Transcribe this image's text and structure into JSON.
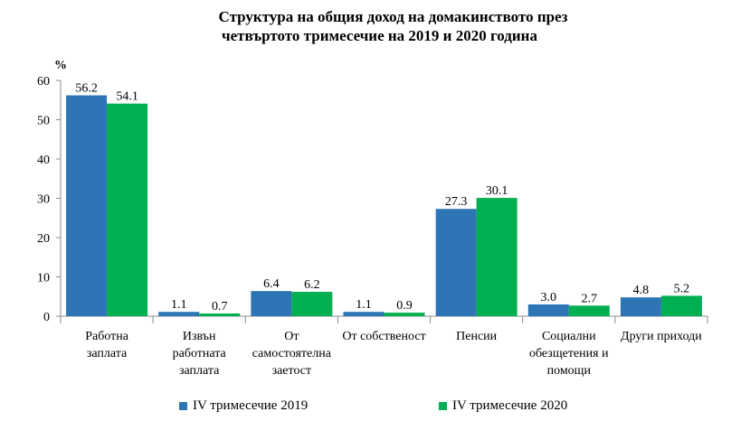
{
  "chart_data": {
    "type": "bar",
    "title": "Структура на общия доход на домакинството през",
    "subtitle": "четвъртото тримесечие на 2019 и 2020 година",
    "ylabel": "%",
    "ylim": [
      0,
      60
    ],
    "yticks": [
      0,
      10,
      20,
      30,
      40,
      50,
      60
    ],
    "grid": false,
    "legend_position": "bottom",
    "categories": [
      [
        "Работна",
        "заплата"
      ],
      [
        "Извън",
        "работната",
        "заплата"
      ],
      [
        "От",
        "самостоятелна",
        "заетост"
      ],
      [
        "От собственост"
      ],
      [
        "Пенсии"
      ],
      [
        "Социални",
        "обезщетения и",
        "помощи"
      ],
      [
        "Други приходи"
      ]
    ],
    "series": [
      {
        "name": "IV  тримесечие 2019",
        "color": "#2e75b6",
        "values": [
          56.2,
          1.1,
          6.4,
          1.1,
          27.3,
          3.0,
          4.8
        ],
        "labels": [
          "56.2",
          "1.1",
          "6.4",
          "1.1",
          "27.3",
          "3.0",
          "4.8"
        ]
      },
      {
        "name": "IV  тримесечие 2020",
        "color": "#00b050",
        "values": [
          54.1,
          0.7,
          6.2,
          0.9,
          30.1,
          2.7,
          5.2
        ],
        "labels": [
          "54.1",
          "0.7",
          "6.2",
          "0.9",
          "30.1",
          "2.7",
          "5.2"
        ]
      }
    ]
  }
}
